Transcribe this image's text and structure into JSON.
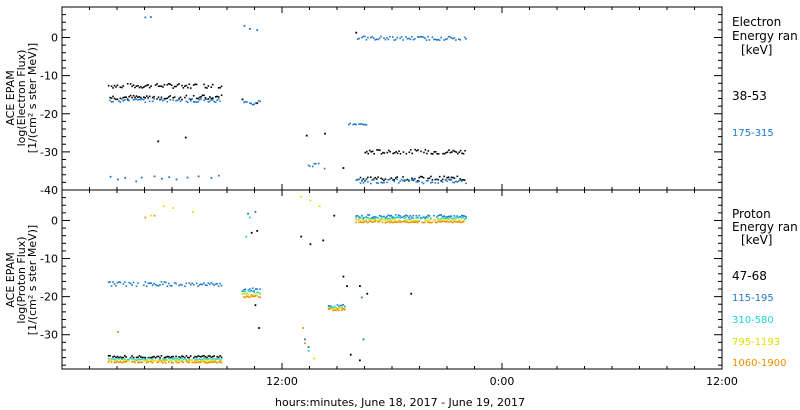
{
  "x_axis_label": "hours:minutes, June 18, 2017 - June 19, 2017",
  "x_tick_labels": [
    "12:00",
    "0:00",
    "12:00"
  ],
  "colors": {
    "black": "#000000",
    "blue": "#1f78c8",
    "cyan": "#1fd3d3",
    "yellow": "#e0e000",
    "orange": "#f08c00"
  },
  "chart_data": [
    {
      "type": "scatter",
      "panel": "top",
      "ylabel_lines": [
        "ACE EPAM",
        "log(Electron Flux)",
        "[1/(cm² s ster MeV)]"
      ],
      "ylim": [
        -40,
        8
      ],
      "yticks": [
        0,
        -10,
        -20,
        -30,
        -40
      ],
      "legend_title_lines": [
        "Electron",
        "Energy ran",
        "[keV]"
      ],
      "series": [
        {
          "name": "38-53",
          "color": "black",
          "segments": [
            {
              "x0": 2.5,
              "x1": 8.7,
              "y": -12.5,
              "spread": 0.6
            },
            {
              "x0": 2.5,
              "x1": 8.7,
              "y": -15.5,
              "spread": 0.6
            },
            {
              "x0": 16.5,
              "x1": 22.0,
              "y": -29.8,
              "spread": 0.6
            },
            {
              "x0": 16.0,
              "x1": 22.0,
              "y": -36.8,
              "spread": 0.6
            }
          ],
          "points": [
            [
              5.2,
              -27
            ],
            [
              6.7,
              -26
            ],
            [
              9.8,
              -16
            ],
            [
              10.6,
              -17
            ],
            [
              13.3,
              -25.5
            ],
            [
              14.3,
              -25
            ],
            [
              16.0,
              1.5
            ],
            [
              15.3,
              -34
            ]
          ]
        },
        {
          "name": "175-315",
          "color": "blue",
          "segments": [
            {
              "x0": 2.5,
              "x1": 8.7,
              "y": -16.3,
              "spread": 0.5
            },
            {
              "x0": 9.8,
              "x1": 10.8,
              "y": -17.0,
              "spread": 0.7
            },
            {
              "x0": 13.4,
              "x1": 14.3,
              "y": -33.5,
              "spread": 0.7
            },
            {
              "x0": 15.6,
              "x1": 16.6,
              "y": -22.5,
              "spread": 0.3
            },
            {
              "x0": 16.0,
              "x1": 22.0,
              "y": 0.0,
              "spread": 0.5
            },
            {
              "x0": 16.0,
              "x1": 22.0,
              "y": -37.5,
              "spread": 0.6
            }
          ],
          "points": [
            [
              4.5,
              5.5
            ],
            [
              4.8,
              5.6
            ],
            [
              9.9,
              3.3
            ],
            [
              10.2,
              2.5
            ],
            [
              10.6,
              2.2
            ],
            [
              2.6,
              -36.3
            ],
            [
              3.0,
              -37
            ],
            [
              3.4,
              -36.6
            ],
            [
              4.0,
              -37.5
            ],
            [
              4.3,
              -36.5
            ],
            [
              5.0,
              -36.2
            ],
            [
              5.4,
              -36.8
            ],
            [
              5.8,
              -36.4
            ],
            [
              6.2,
              -37
            ],
            [
              6.8,
              -36.5
            ],
            [
              7.4,
              -36.2
            ],
            [
              8.1,
              -36.6
            ],
            [
              8.5,
              -36
            ]
          ]
        }
      ]
    },
    {
      "type": "scatter",
      "panel": "bottom",
      "ylabel_lines": [
        "ACE EPAM",
        "log(Proton Flux)",
        "[1/(cm² s ster MeV)]"
      ],
      "ylim": [
        -39,
        8
      ],
      "yticks": [
        0,
        -10,
        -20,
        -30
      ],
      "legend_title_lines": [
        "Proton",
        "Energy ran",
        "[keV]"
      ],
      "series": [
        {
          "name": "47-68",
          "color": "black",
          "segments": [
            {
              "x0": 2.5,
              "x1": 8.7,
              "y": -35.6,
              "spread": 0.3
            }
          ],
          "points": [
            [
              10.3,
              -3
            ],
            [
              10.6,
              -2.5
            ],
            [
              13.0,
              -4
            ],
            [
              13.5,
              -6
            ],
            [
              14.2,
              -5
            ],
            [
              14.8,
              1.5
            ],
            [
              15.3,
              -14.5
            ],
            [
              15.5,
              -17
            ],
            [
              16.2,
              -17
            ],
            [
              16.6,
              -19
            ],
            [
              19.0,
              -19
            ],
            [
              15.7,
              -35
            ],
            [
              16.2,
              -36.5
            ],
            [
              10.5,
              -22
            ],
            [
              10.7,
              -28
            ]
          ]
        },
        {
          "name": "115-195",
          "color": "blue",
          "segments": [
            {
              "x0": 2.5,
              "x1": 8.7,
              "y": -16.5,
              "spread": 0.6
            },
            {
              "x0": 9.8,
              "x1": 10.8,
              "y": -18.0,
              "spread": 0.5
            },
            {
              "x0": 14.5,
              "x1": 15.4,
              "y": -22.2,
              "spread": 0.3
            },
            {
              "x0": 16.0,
              "x1": 22.0,
              "y": 1.3,
              "spread": 0.4
            }
          ],
          "points": [
            [
              10.1,
              2
            ],
            [
              10.5,
              2.5
            ],
            [
              16.3,
              -20
            ],
            [
              16.4,
              -31
            ],
            [
              13.2,
              -31
            ],
            [
              13.4,
              -33
            ]
          ]
        },
        {
          "name": "310-580",
          "color": "cyan",
          "segments": [
            {
              "x0": 2.5,
              "x1": 8.7,
              "y": -36.2,
              "spread": 0.3
            },
            {
              "x0": 9.8,
              "x1": 10.8,
              "y": -18.6,
              "spread": 0.4
            },
            {
              "x0": 14.5,
              "x1": 15.4,
              "y": -22.6,
              "spread": 0.3
            },
            {
              "x0": 16.0,
              "x1": 22.0,
              "y": 0.8,
              "spread": 0.3
            }
          ],
          "points": [
            [
              10.0,
              -4
            ],
            [
              10.2,
              1
            ],
            [
              13.4,
              -34
            ]
          ]
        },
        {
          "name": "795-1193",
          "color": "yellow",
          "segments": [
            {
              "x0": 2.5,
              "x1": 8.7,
              "y": -36.6,
              "spread": 0.2
            },
            {
              "x0": 9.8,
              "x1": 10.8,
              "y": -19.2,
              "spread": 0.3
            },
            {
              "x0": 14.5,
              "x1": 15.4,
              "y": -22.9,
              "spread": 0.2
            },
            {
              "x0": 16.0,
              "x1": 22.0,
              "y": 0.3,
              "spread": 0.2
            }
          ],
          "points": [
            [
              4.8,
              1.5
            ],
            [
              5.5,
              4
            ],
            [
              6.0,
              3.5
            ],
            [
              7.1,
              2.5
            ],
            [
              13.0,
              6.5
            ],
            [
              13.5,
              5.5
            ],
            [
              14.0,
              4
            ],
            [
              13.7,
              -36
            ]
          ]
        },
        {
          "name": "1060-1900",
          "color": "orange",
          "segments": [
            {
              "x0": 2.5,
              "x1": 8.7,
              "y": -37.0,
              "spread": 0.2
            },
            {
              "x0": 9.8,
              "x1": 10.8,
              "y": -19.8,
              "spread": 0.2
            },
            {
              "x0": 14.5,
              "x1": 15.4,
              "y": -23.2,
              "spread": 0.2
            },
            {
              "x0": 16.0,
              "x1": 22.0,
              "y": -0.2,
              "spread": 0.2
            }
          ],
          "points": [
            [
              4.5,
              1
            ],
            [
              5.0,
              1.5
            ],
            [
              3.0,
              -29
            ],
            [
              13.1,
              -28
            ],
            [
              13.2,
              -32
            ]
          ]
        }
      ]
    }
  ]
}
